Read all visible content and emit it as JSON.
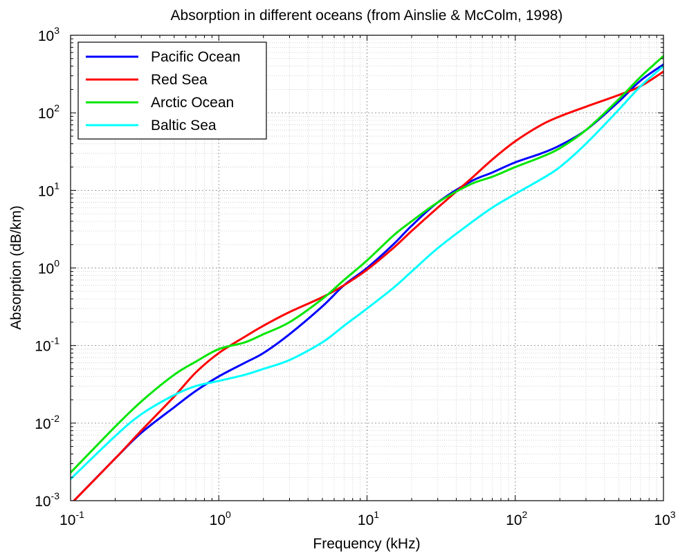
{
  "chart_data": {
    "type": "line",
    "title": "Absorption in different oceans (from Ainslie & McColm, 1998)",
    "xlabel": "Frequency (kHz)",
    "ylabel": "Absorption (dB/km)",
    "xscale": "log",
    "yscale": "log",
    "xlim": [
      0.1,
      1000
    ],
    "ylim": [
      0.001,
      1000
    ],
    "grid": true,
    "legend_position": "top-left",
    "x_ticks": [
      {
        "base": "10",
        "exp": "-1"
      },
      {
        "base": "10",
        "exp": "0"
      },
      {
        "base": "10",
        "exp": "1"
      },
      {
        "base": "10",
        "exp": "2"
      },
      {
        "base": "10",
        "exp": "3"
      }
    ],
    "y_ticks": [
      {
        "base": "10",
        "exp": "-3"
      },
      {
        "base": "10",
        "exp": "-2"
      },
      {
        "base": "10",
        "exp": "-1"
      },
      {
        "base": "10",
        "exp": "0"
      },
      {
        "base": "10",
        "exp": "1"
      },
      {
        "base": "10",
        "exp": "2"
      },
      {
        "base": "10",
        "exp": "3"
      }
    ],
    "series": [
      {
        "name": "Pacific Ocean",
        "color": "#0000ff",
        "x": [
          0.1,
          0.2,
          0.3,
          0.5,
          0.7,
          1,
          1.5,
          2,
          3,
          5,
          7,
          10,
          15,
          20,
          30,
          50,
          70,
          100,
          150,
          200,
          300,
          500,
          700,
          1000
        ],
        "y": [
          0.0009,
          0.0035,
          0.0075,
          0.016,
          0.026,
          0.04,
          0.06,
          0.08,
          0.14,
          0.32,
          0.6,
          1.0,
          2.0,
          3.5,
          7.0,
          13,
          17,
          23,
          30,
          38,
          60,
          140,
          260,
          420
        ]
      },
      {
        "name": "Red Sea",
        "color": "#ff0000",
        "x": [
          0.1,
          0.2,
          0.3,
          0.5,
          0.7,
          1,
          1.5,
          2,
          3,
          5,
          7,
          10,
          15,
          20,
          30,
          50,
          70,
          100,
          150,
          200,
          300,
          500,
          700,
          1000
        ],
        "y": [
          0.0009,
          0.0035,
          0.008,
          0.022,
          0.045,
          0.08,
          0.13,
          0.18,
          0.27,
          0.42,
          0.6,
          0.95,
          1.8,
          3.0,
          6.0,
          14,
          25,
          43,
          70,
          90,
          120,
          170,
          220,
          340
        ]
      },
      {
        "name": "Arctic Ocean",
        "color": "#00e600",
        "x": [
          0.1,
          0.2,
          0.3,
          0.5,
          0.7,
          1,
          1.5,
          2,
          3,
          5,
          7,
          10,
          15,
          20,
          30,
          50,
          70,
          100,
          150,
          200,
          300,
          500,
          700,
          1000
        ],
        "y": [
          0.0023,
          0.009,
          0.019,
          0.042,
          0.062,
          0.09,
          0.11,
          0.14,
          0.2,
          0.4,
          0.7,
          1.25,
          2.6,
          4.0,
          7.0,
          12,
          15,
          20,
          27,
          35,
          60,
          150,
          290,
          540
        ]
      },
      {
        "name": "Baltic Sea",
        "color": "#00ffff",
        "x": [
          0.1,
          0.2,
          0.3,
          0.5,
          0.7,
          1,
          1.5,
          2,
          3,
          5,
          7,
          10,
          15,
          20,
          30,
          50,
          70,
          100,
          150,
          200,
          300,
          500,
          700,
          1000
        ],
        "y": [
          0.0019,
          0.0068,
          0.013,
          0.023,
          0.03,
          0.035,
          0.042,
          0.05,
          0.065,
          0.11,
          0.18,
          0.3,
          0.55,
          0.9,
          1.8,
          3.8,
          6.0,
          9.0,
          14,
          20,
          40,
          110,
          220,
          400
        ]
      }
    ]
  }
}
